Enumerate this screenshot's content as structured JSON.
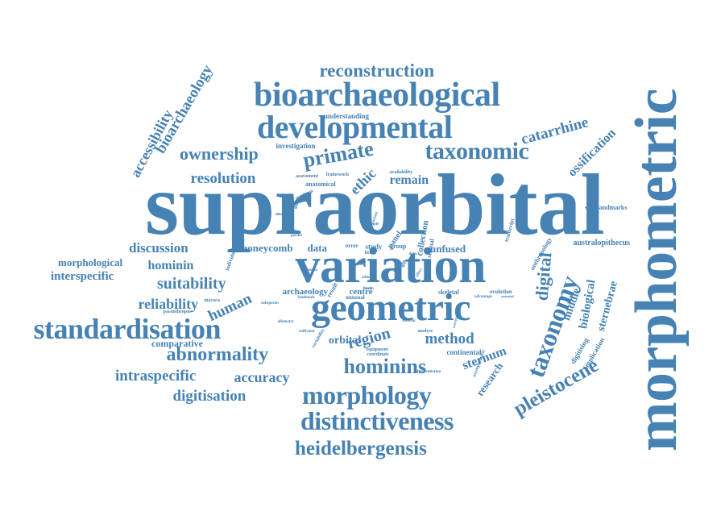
{
  "cloud": {
    "color": "#4682b4",
    "words": [
      "supraorbital",
      "morphometric",
      "variation",
      "geometric",
      "bioarchaeological",
      "developmental",
      "standardisation",
      "distinctiveness",
      "morphology",
      "taxonomy",
      "taxonomic",
      "reconstruction",
      "heidelbergensis",
      "pleistocene",
      "hominins",
      "abnormality",
      "primate",
      "ownership",
      "bioarchaeology",
      "accessibility",
      "resolution",
      "digitisation",
      "intraspecific",
      "accuracy",
      "suitability",
      "reliability",
      "region",
      "method",
      "catarrhine",
      "ossification",
      "discussion",
      "hominin",
      "morphological",
      "interspecific",
      "human",
      "digital",
      "sternebrae",
      "biological",
      "sternum",
      "middle",
      "research",
      "ethic",
      "remain",
      "comparative",
      "honeycomb",
      "data",
      "archaeology",
      "orbital",
      "centre",
      "unfused",
      "australopithecus",
      "semilandmarks",
      "investigation",
      "understanding",
      "anatomical",
      "collection",
      "panel",
      "study",
      "sternal",
      "result",
      "skeletal",
      "evolution",
      "continental",
      "error",
      "group",
      "digitising",
      "implication",
      "anthropology",
      "transcript",
      "assessment",
      "framework",
      "availability",
      "specimen",
      "sapiens",
      "analysis",
      "individual",
      "material",
      "macaca",
      "paranthropus",
      "subspecies",
      "allometry",
      "sufficient",
      "variability",
      "landmark",
      "unusual",
      "advantage",
      "equipment",
      "coordinate",
      "forensic",
      "analyse",
      "differentiation",
      "asymptomatic",
      "potential",
      "current",
      "ridge",
      "gorilla",
      "field",
      "ethical",
      "taxon",
      "case",
      "people",
      "defect",
      "effect",
      "fossil",
      "sample",
      "variant"
    ]
  }
}
